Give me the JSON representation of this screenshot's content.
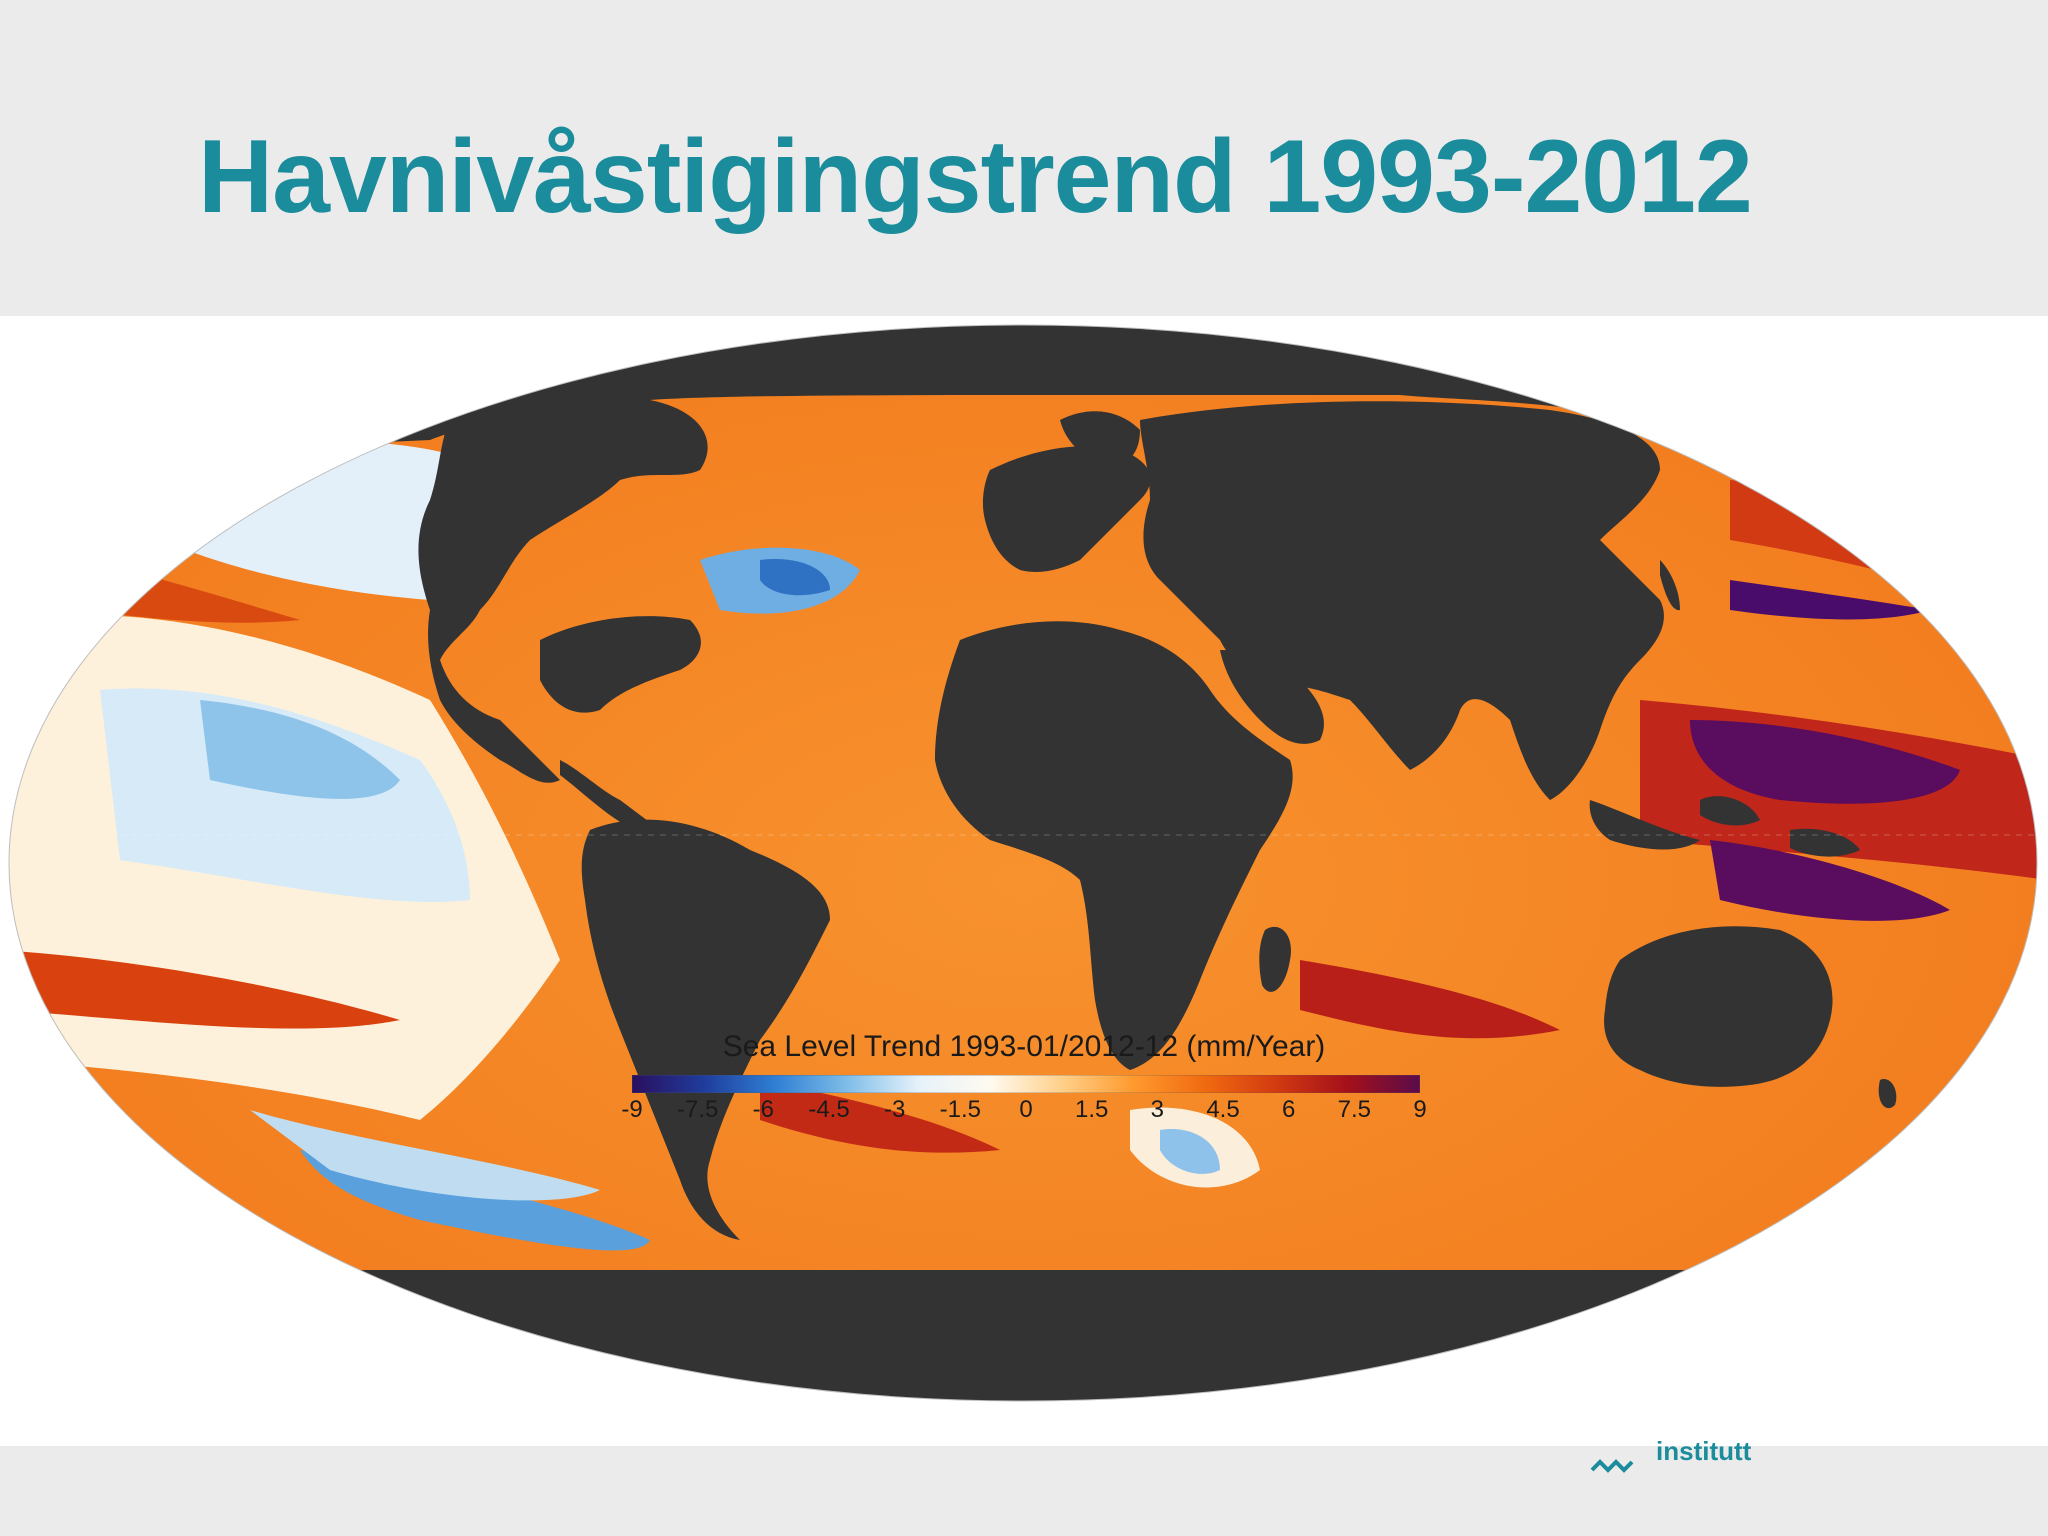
{
  "slide": {
    "title": "Havnivåstigingstrend 1993-2012"
  },
  "map": {
    "projection": "Mollweide",
    "legend_title": "Sea Level Trend 1993-01/2012-12 (mm/Year)",
    "colorbar_ticks": [
      "-9",
      "-7.5",
      "-6",
      "-4.5",
      "-3",
      "-1.5",
      "0",
      "1.5",
      "3",
      "4.5",
      "6",
      "7.5",
      "9"
    ],
    "colorbar_colors": [
      "#2a0f5e",
      "#1f3c9c",
      "#2f7fd4",
      "#7fbde8",
      "#e6f2fa",
      "#fffaf0",
      "#ffd08a",
      "#ff9a2e",
      "#f06a10",
      "#d23a10",
      "#a3101a",
      "#5a0c4a"
    ],
    "land_color": "#333333",
    "ocean_base_color": "#f58a28"
  },
  "footer": {
    "logo_text": "institutt"
  }
}
